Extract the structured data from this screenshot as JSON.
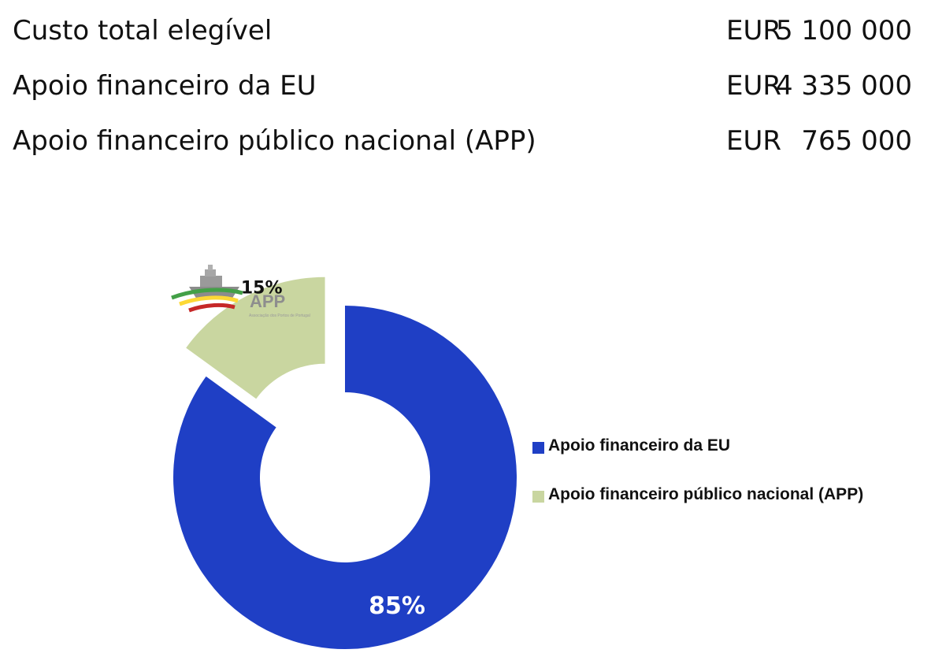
{
  "summary": {
    "rows": [
      {
        "label": "Custo total elegível",
        "currency": "EUR",
        "value": "5 100 000"
      },
      {
        "label": "Apoio financeiro da EU",
        "currency": "EUR",
        "value": "4 335 000"
      },
      {
        "label": "Apoio financeiro público nacional (APP)",
        "currency": "EUR",
        "value": "765 000"
      }
    ]
  },
  "logo": {
    "text": "APP",
    "subtext": "Associação dos Portos de Portugal"
  },
  "chart_data": {
    "type": "pie",
    "donut": true,
    "exploded_slice": "Apoio financeiro público nacional (APP)",
    "slices": [
      {
        "name": "Apoio financeiro da EU",
        "value": 85,
        "label": "85%",
        "color": "#1f3fc5"
      },
      {
        "name": "Apoio financeiro público nacional (APP)",
        "value": 15,
        "label": "15%",
        "color": "#c9d6a0"
      }
    ],
    "legend": [
      "Apoio financeiro da EU",
      "Apoio financeiro público nacional (APP)"
    ],
    "legend_position": "right"
  }
}
